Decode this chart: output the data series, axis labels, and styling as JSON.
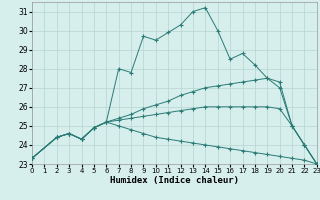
{
  "xlabel": "Humidex (Indice chaleur)",
  "xlim": [
    0,
    23
  ],
  "ylim": [
    23,
    31.5
  ],
  "yticks": [
    23,
    24,
    25,
    26,
    27,
    28,
    29,
    30,
    31
  ],
  "xticks": [
    0,
    1,
    2,
    3,
    4,
    5,
    6,
    7,
    8,
    9,
    10,
    11,
    12,
    13,
    14,
    15,
    16,
    17,
    18,
    19,
    20,
    21,
    22,
    23
  ],
  "bg_color": "#d6eeec",
  "line_color": "#2a7b76",
  "grid_color": "#b5d5d2",
  "lines": [
    {
      "x": [
        0,
        2,
        3,
        4,
        5,
        6,
        7,
        8,
        9,
        10,
        11,
        12,
        13,
        14,
        15,
        16,
        17,
        18,
        19,
        20,
        21,
        22,
        23
      ],
      "y": [
        23.3,
        24.4,
        24.6,
        24.3,
        24.9,
        25.2,
        28.0,
        27.8,
        29.7,
        29.5,
        29.9,
        30.3,
        31.0,
        31.2,
        30.0,
        28.5,
        28.8,
        28.2,
        27.5,
        27.3,
        25.0,
        24.0,
        23.0
      ]
    },
    {
      "x": [
        0,
        2,
        3,
        4,
        5,
        6,
        7,
        8,
        9,
        10,
        11,
        12,
        13,
        14,
        15,
        16,
        17,
        18,
        19,
        20,
        21,
        22,
        23
      ],
      "y": [
        23.3,
        24.4,
        24.6,
        24.3,
        24.9,
        25.2,
        25.4,
        25.6,
        25.9,
        26.1,
        26.3,
        26.6,
        26.8,
        27.0,
        27.1,
        27.2,
        27.3,
        27.4,
        27.5,
        27.0,
        25.0,
        24.0,
        23.0
      ]
    },
    {
      "x": [
        0,
        2,
        3,
        4,
        5,
        6,
        7,
        8,
        9,
        10,
        11,
        12,
        13,
        14,
        15,
        16,
        17,
        18,
        19,
        20,
        21,
        22,
        23
      ],
      "y": [
        23.3,
        24.4,
        24.6,
        24.3,
        24.9,
        25.2,
        25.3,
        25.4,
        25.5,
        25.6,
        25.7,
        25.8,
        25.9,
        26.0,
        26.0,
        26.0,
        26.0,
        26.0,
        26.0,
        25.9,
        25.0,
        24.0,
        23.0
      ]
    },
    {
      "x": [
        0,
        2,
        3,
        4,
        5,
        6,
        7,
        8,
        9,
        10,
        11,
        12,
        13,
        14,
        15,
        16,
        17,
        18,
        19,
        20,
        21,
        22,
        23
      ],
      "y": [
        23.3,
        24.4,
        24.6,
        24.3,
        24.9,
        25.2,
        25.0,
        24.8,
        24.6,
        24.4,
        24.3,
        24.2,
        24.1,
        24.0,
        23.9,
        23.8,
        23.7,
        23.6,
        23.5,
        23.4,
        23.3,
        23.2,
        23.0
      ]
    }
  ]
}
